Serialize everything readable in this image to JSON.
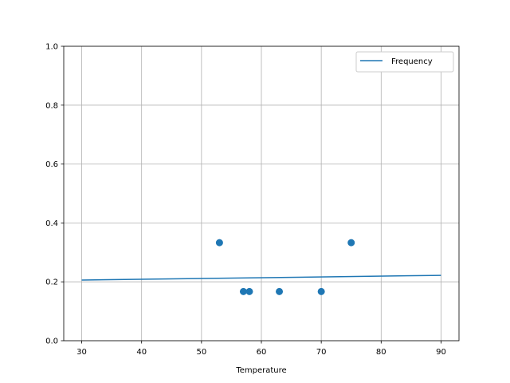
{
  "chart_data": {
    "type": "scatter+line",
    "title": "",
    "xlabel": "Temperature",
    "ylabel": "",
    "xlim": [
      27,
      93
    ],
    "ylim": [
      0,
      1.0
    ],
    "grid": true,
    "xticks": [
      30,
      40,
      50,
      60,
      70,
      80,
      90
    ],
    "yticks": [
      0.0,
      0.2,
      0.4,
      0.6,
      0.8,
      1.0
    ],
    "ytick_labels": [
      "0.0",
      "0.2",
      "0.4",
      "0.6",
      "0.8",
      "1.0"
    ],
    "legend_position": "top-right",
    "color": "#1f77b4",
    "scatter": {
      "x": [
        53,
        57,
        58,
        63,
        70,
        75
      ],
      "y": [
        0.333,
        0.167,
        0.167,
        0.167,
        0.167,
        0.333
      ]
    },
    "line": {
      "name": "Frequency",
      "x": [
        30,
        90
      ],
      "y": [
        0.206,
        0.222
      ]
    }
  }
}
